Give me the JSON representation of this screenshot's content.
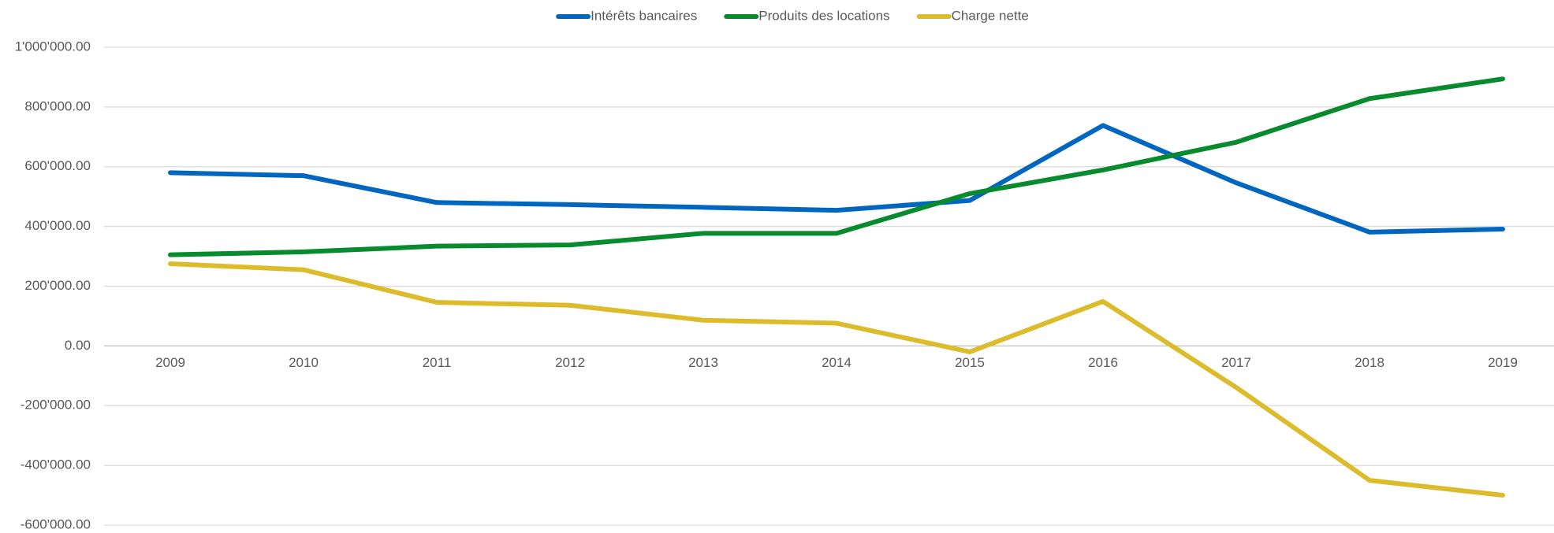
{
  "chart_data": {
    "type": "line",
    "categories": [
      "2009",
      "2010",
      "2011",
      "2012",
      "2013",
      "2014",
      "2015",
      "2016",
      "2017",
      "2018",
      "2019"
    ],
    "series": [
      {
        "name": "Intérêts bancaires",
        "color": "#0066c0",
        "values": [
          580000,
          570000,
          480000,
          473000,
          464000,
          454000,
          487000,
          738000,
          546000,
          381000,
          391000
        ]
      },
      {
        "name": "Produits des locations",
        "color": "#088a2e",
        "values": [
          305000,
          315000,
          334000,
          338000,
          377000,
          377000,
          510000,
          589000,
          682000,
          828000,
          894000
        ]
      },
      {
        "name": "Charge nette",
        "color": "#dcbc2a",
        "values": [
          275000,
          255000,
          146000,
          136000,
          86000,
          76000,
          -20000,
          149000,
          -139000,
          -450000,
          -500000
        ]
      }
    ],
    "ylim": [
      -600000,
      1000000
    ],
    "yticks": [
      {
        "value": -600000,
        "label": "-600'000.00"
      },
      {
        "value": -400000,
        "label": "-400'000.00"
      },
      {
        "value": -200000,
        "label": "-200'000.00"
      },
      {
        "value": 0,
        "label": "0.00"
      },
      {
        "value": 200000,
        "label": "200'000.00"
      },
      {
        "value": 400000,
        "label": "400'000.00"
      },
      {
        "value": 600000,
        "label": "600'000.00"
      },
      {
        "value": 800000,
        "label": "800'000.00"
      },
      {
        "value": 1000000,
        "label": "1'000'000.00"
      }
    ],
    "grid": true,
    "legend": "top"
  }
}
